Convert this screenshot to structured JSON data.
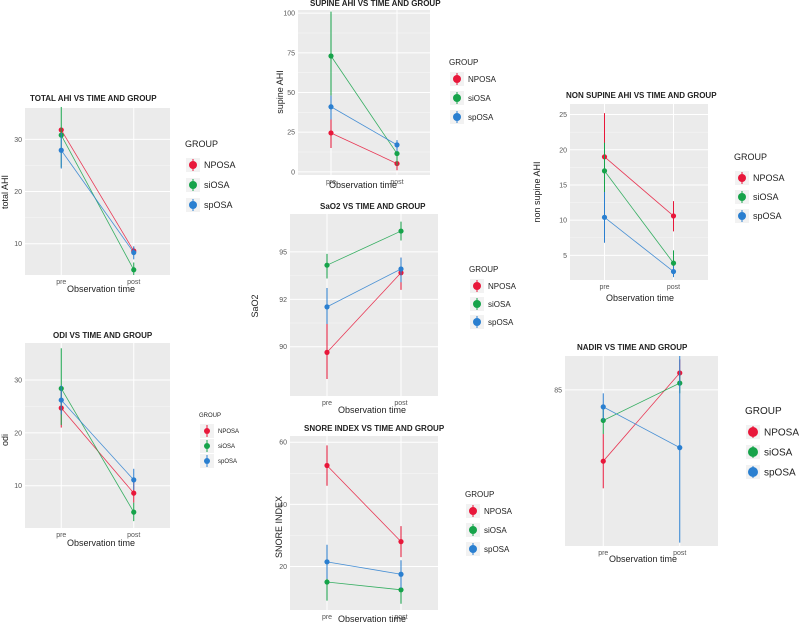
{
  "colors": {
    "NPOSA": "#e8173a",
    "siOSA": "#16a34a",
    "spOSA": "#2a7fd0"
  },
  "legend_title": "GROUP",
  "chart_data": [
    {
      "id": "total-ahi",
      "type": "line",
      "title": "TOTAL AHI VS TIME AND GROUP",
      "xlabel": "Observation time",
      "ylabel": "total AHI",
      "categories": [
        "pre",
        "post"
      ],
      "ylim": [
        4,
        36
      ],
      "yticks": [
        10,
        20,
        30
      ],
      "series": [
        {
          "name": "NPOSA",
          "values": [
            31.8,
            8.6
          ],
          "err": [
            [
              31.8,
              31.8
            ],
            [
              7.8,
              9.3
            ]
          ]
        },
        {
          "name": "siOSA",
          "values": [
            30.8,
            5.0
          ],
          "err": [
            [
              24.6,
              36.2
            ],
            [
              4.0,
              6.4
            ]
          ]
        },
        {
          "name": "spOSA",
          "values": [
            27.9,
            8.3
          ],
          "err": [
            [
              24.4,
              31.2
            ],
            [
              7.0,
              9.5
            ]
          ]
        }
      ]
    },
    {
      "id": "supine-ahi",
      "type": "line",
      "title": "SUPINE AHI VS TIME AND GROUP",
      "xlabel": "Observation time",
      "ylabel": "supine AHI",
      "categories": [
        "pre",
        "post"
      ],
      "ylim": [
        -2,
        102
      ],
      "yticks": [
        0,
        25,
        50,
        75,
        100
      ],
      "series": [
        {
          "name": "NPOSA",
          "values": [
            24.5,
            5.2
          ],
          "err": [
            [
              15.0,
              33.0
            ],
            [
              1.0,
              9.0
            ]
          ]
        },
        {
          "name": "siOSA",
          "values": [
            73.0,
            11.5
          ],
          "err": [
            [
              48.0,
              101.0
            ],
            [
              4.0,
              18.0
            ]
          ]
        },
        {
          "name": "spOSA",
          "values": [
            41.0,
            17.0
          ],
          "err": [
            [
              33.0,
              48.0
            ],
            [
              13.0,
              20.0
            ]
          ]
        }
      ]
    },
    {
      "id": "non-supine-ahi",
      "type": "line",
      "title": "NON SUPINE AHI VS TIME AND GROUP",
      "xlabel": "Observation time",
      "ylabel": "non supine AHI",
      "categories": [
        "pre",
        "post"
      ],
      "ylim": [
        1.5,
        26.5
      ],
      "yticks": [
        5,
        10,
        15,
        20,
        25
      ],
      "series": [
        {
          "name": "NPOSA",
          "values": [
            19.0,
            10.6
          ],
          "err": [
            [
              13.0,
              25.2
            ],
            [
              8.4,
              12.7
            ]
          ]
        },
        {
          "name": "siOSA",
          "values": [
            17.0,
            3.9
          ],
          "err": [
            [
              12.6,
              21.0
            ],
            [
              2.3,
              5.7
            ]
          ]
        },
        {
          "name": "spOSA",
          "values": [
            10.4,
            2.7
          ],
          "err": [
            [
              6.8,
              14.0
            ],
            [
              1.9,
              3.5
            ]
          ]
        }
      ]
    },
    {
      "id": "sao2",
      "type": "line",
      "title": "SaO2 VS TIME AND GROUP",
      "xlabel": "Observation time",
      "ylabel": "SaO2",
      "categories": [
        "pre",
        "post"
      ],
      "ylim": [
        87.4,
        97.0
      ],
      "yticks": [
        90,
        92,
        95
      ],
      "ytick_pos": [
        90,
        92.5,
        95
      ],
      "series": [
        {
          "name": "NPOSA",
          "values": [
            89.7,
            93.9
          ],
          "err": [
            [
              88.3,
              91.2
            ],
            [
              93.0,
              94.7
            ]
          ]
        },
        {
          "name": "siOSA",
          "values": [
            94.3,
            96.1
          ],
          "err": [
            [
              93.6,
              94.9
            ],
            [
              95.6,
              96.6
            ]
          ]
        },
        {
          "name": "spOSA",
          "values": [
            92.1,
            94.1
          ],
          "err": [
            [
              91.2,
              93.1
            ],
            [
              93.4,
              94.7
            ]
          ]
        }
      ]
    },
    {
      "id": "odi",
      "type": "line",
      "title": "ODI VS TIME AND GROUP",
      "xlabel": "Observation time",
      "ylabel": "odi",
      "categories": [
        "pre",
        "post"
      ],
      "ylim": [
        2,
        37
      ],
      "yticks": [
        10,
        20,
        30
      ],
      "series": [
        {
          "name": "NPOSA",
          "values": [
            24.7,
            8.6
          ],
          "err": [
            [
              21.0,
              28.0
            ],
            [
              6.8,
              10.7
            ]
          ]
        },
        {
          "name": "siOSA",
          "values": [
            28.4,
            5.0
          ],
          "err": [
            [
              21.5,
              36.0
            ],
            [
              3.3,
              6.8
            ]
          ]
        },
        {
          "name": "spOSA",
          "values": [
            26.2,
            11.1
          ],
          "err": [
            [
              23.5,
              29.0
            ],
            [
              9.2,
              13.2
            ]
          ]
        }
      ]
    },
    {
      "id": "snore-index",
      "type": "line",
      "title": "SNORE INDEX VS TIME AND GROUP",
      "xlabel": "Observation time",
      "ylabel": "SNORE INDEX",
      "categories": [
        "pre",
        "post"
      ],
      "ylim": [
        6,
        62
      ],
      "yticks": [
        20,
        40,
        60
      ],
      "series": [
        {
          "name": "NPOSA",
          "values": [
            52.5,
            28.0
          ],
          "err": [
            [
              46.0,
              59.0
            ],
            [
              23.0,
              33.0
            ]
          ]
        },
        {
          "name": "siOSA",
          "values": [
            15.0,
            12.5
          ],
          "err": [
            [
              9.0,
              21.0
            ],
            [
              8.0,
              17.0
            ]
          ]
        },
        {
          "name": "spOSA",
          "values": [
            21.5,
            17.5
          ],
          "err": [
            [
              16.0,
              27.0
            ],
            [
              13.0,
              22.0
            ]
          ]
        }
      ]
    },
    {
      "id": "nadir",
      "type": "line",
      "title": "NADIR VS TIME AND GROUP",
      "xlabel": "Observation time",
      "ylabel": "",
      "categories": [
        "pre",
        "post"
      ],
      "ylim": [
        62,
        90
      ],
      "yticks": [
        85
      ],
      "series": [
        {
          "name": "NPOSA",
          "values": [
            74.5,
            87.5
          ],
          "err": [
            [
              70.5,
              78.5
            ],
            [
              85.8,
              89.5
            ]
          ]
        },
        {
          "name": "siOSA",
          "values": [
            80.5,
            86.0
          ],
          "err": [
            [
              78.5,
              82.5
            ],
            [
              84.5,
              87.5
            ]
          ]
        },
        {
          "name": "spOSA",
          "values": [
            82.5,
            76.5
          ],
          "err": [
            [
              80.5,
              84.5
            ],
            [
              62.5,
              90.0
            ]
          ]
        }
      ]
    }
  ]
}
